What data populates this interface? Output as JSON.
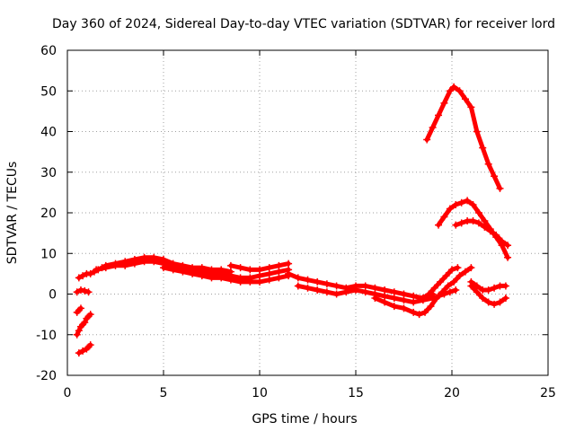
{
  "chart_data": {
    "type": "scatter",
    "title": "Day 360 of 2024, Sidereal Day-to-day VTEC variation (SDTVAR) for receiver lord",
    "xlabel": "GPS time / hours",
    "ylabel": "SDTVAR / TECUs",
    "xlim": [
      0,
      25
    ],
    "ylim": [
      -20,
      60
    ],
    "xticks": [
      0,
      5,
      10,
      15,
      20,
      25
    ],
    "yticks": [
      -20,
      -10,
      0,
      10,
      20,
      30,
      40,
      50,
      60
    ],
    "grid": true,
    "marker": "+",
    "color": "#ff0000",
    "series": [
      {
        "name": "track-1",
        "x": [
          0.5,
          0.6,
          0.7,
          0.8,
          0.9,
          1.0,
          1.1,
          1.2
        ],
        "y": [
          -10,
          -9,
          -8,
          -7.5,
          -7,
          -6,
          -5.5,
          -5
        ]
      },
      {
        "name": "track-2",
        "x": [
          0.5,
          0.6,
          0.7
        ],
        "y": [
          -4.5,
          -4,
          -3.5
        ]
      },
      {
        "name": "track-3",
        "x": [
          0.6,
          0.8,
          1.0,
          1.1,
          1.2
        ],
        "y": [
          -14.5,
          -14,
          -13.5,
          -13,
          -12.5
        ]
      },
      {
        "name": "track-4",
        "x": [
          0.5,
          0.7,
          0.9,
          1.1
        ],
        "y": [
          0.5,
          1,
          0.8,
          0.5
        ]
      },
      {
        "name": "track-5",
        "x": [
          0.6,
          0.8,
          1.0,
          1.2,
          1.4,
          1.6,
          1.8,
          2.0,
          2.5,
          3.0,
          3.5,
          4.0,
          4.5,
          5.0,
          5.5,
          6.0,
          6.5,
          7.0,
          7.5,
          8.0,
          8.5
        ],
        "y": [
          4,
          4.5,
          5,
          5,
          5.5,
          6,
          6.5,
          7,
          7.5,
          8,
          8.5,
          9,
          9,
          8.5,
          7.5,
          7,
          6.5,
          6.5,
          6,
          6,
          5.5
        ]
      },
      {
        "name": "track-6",
        "x": [
          1.5,
          2.0,
          2.5,
          3.0,
          3.5,
          4.0,
          4.5,
          5.0,
          5.5,
          6.0,
          6.5,
          7.0,
          7.5,
          8.0,
          8.5,
          9.0,
          9.5,
          10.0,
          10.5,
          11.0,
          11.5
        ],
        "y": [
          6,
          6.5,
          7,
          7,
          7.5,
          8,
          8,
          7.5,
          7,
          6.5,
          6,
          5.5,
          5,
          5,
          4.5,
          4,
          4,
          4.5,
          5,
          5.5,
          6
        ]
      },
      {
        "name": "track-7",
        "x": [
          5.0,
          5.5,
          6.0,
          6.5,
          7.0,
          7.5,
          8.0,
          8.5,
          9.0,
          9.5,
          10.0,
          10.5,
          11.0,
          11.5
        ],
        "y": [
          6.5,
          6,
          5.5,
          5,
          4.5,
          4,
          4,
          3.5,
          3,
          3,
          3,
          3.5,
          4,
          4.5
        ]
      },
      {
        "name": "track-8",
        "x": [
          8.5,
          9.0,
          9.5,
          10.0,
          10.5,
          11.0,
          11.5
        ],
        "y": [
          7,
          6.5,
          6,
          6,
          6.5,
          7,
          7.5
        ]
      },
      {
        "name": "track-9",
        "x": [
          11.5,
          12.0,
          12.5,
          13.0,
          13.5,
          14.0,
          14.5,
          15.0,
          15.5,
          16.0,
          16.5,
          17.0,
          17.5,
          18.0,
          18.5,
          19.0
        ],
        "y": [
          5,
          4,
          3.5,
          3,
          2.5,
          2,
          1.5,
          2,
          2,
          1.5,
          1,
          0.5,
          0,
          -0.5,
          -1,
          0
        ]
      },
      {
        "name": "track-10",
        "x": [
          12.0,
          12.5,
          13.0,
          13.5,
          14.0,
          14.5,
          15.0,
          15.5,
          16.0,
          16.5,
          17.0,
          17.5,
          18.0,
          18.5,
          19.0
        ],
        "y": [
          2,
          1.5,
          1,
          0.5,
          0,
          0.5,
          1,
          0.5,
          0,
          -0.5,
          -1,
          -1.5,
          -2,
          -1.5,
          -1
        ]
      },
      {
        "name": "track-11",
        "x": [
          16.0,
          16.5,
          17.0,
          17.5,
          18.0,
          18.3,
          18.6,
          18.9,
          19.2,
          19.5,
          19.8,
          20.1,
          20.4,
          20.7,
          21.0
        ],
        "y": [
          -1,
          -2,
          -3,
          -3.5,
          -4.5,
          -5,
          -4.5,
          -3,
          -1,
          0.5,
          2,
          3,
          4.5,
          5.5,
          6.5
        ]
      },
      {
        "name": "track-12",
        "x": [
          18.5,
          18.8,
          19.1,
          19.4,
          19.7,
          20.0,
          20.3
        ],
        "y": [
          -1,
          0,
          1.5,
          3,
          4.5,
          6,
          6.5
        ]
      },
      {
        "name": "track-13",
        "x": [
          19.0,
          19.3,
          19.6,
          19.9,
          20.2
        ],
        "y": [
          -1,
          -0.5,
          0,
          0.5,
          1
        ]
      },
      {
        "name": "track-14",
        "x": [
          18.7,
          19.0,
          19.3,
          19.6,
          19.9,
          20.1,
          20.4,
          20.7,
          21.0,
          21.3,
          21.6,
          21.9,
          22.2,
          22.5
        ],
        "y": [
          38,
          41,
          44,
          47,
          50,
          51,
          50,
          48,
          46,
          40,
          36,
          32,
          29,
          26
        ]
      },
      {
        "name": "track-15",
        "x": [
          19.3,
          19.6,
          19.9,
          20.2,
          20.5,
          20.8,
          21.1,
          21.4,
          21.7,
          22.0,
          22.3,
          22.6,
          22.9
        ],
        "y": [
          17,
          19,
          21,
          22,
          22.5,
          23,
          22,
          20,
          18,
          16,
          14,
          12,
          9
        ]
      },
      {
        "name": "track-16",
        "x": [
          20.2,
          20.5,
          20.8,
          21.1,
          21.4,
          21.7,
          22.0,
          22.3,
          22.6,
          22.9
        ],
        "y": [
          17,
          17.5,
          18,
          18,
          17.5,
          16.5,
          15.5,
          14.5,
          13,
          12
        ]
      },
      {
        "name": "track-17",
        "x": [
          21.0,
          21.3,
          21.6,
          21.9,
          22.2,
          22.5,
          22.8
        ],
        "y": [
          2,
          0.5,
          -1,
          -2,
          -2.5,
          -2,
          -1
        ]
      },
      {
        "name": "track-18",
        "x": [
          21.0,
          21.3,
          21.6,
          21.9,
          22.2,
          22.5,
          22.8
        ],
        "y": [
          3,
          2,
          1,
          1,
          1.5,
          2,
          2
        ]
      }
    ]
  }
}
